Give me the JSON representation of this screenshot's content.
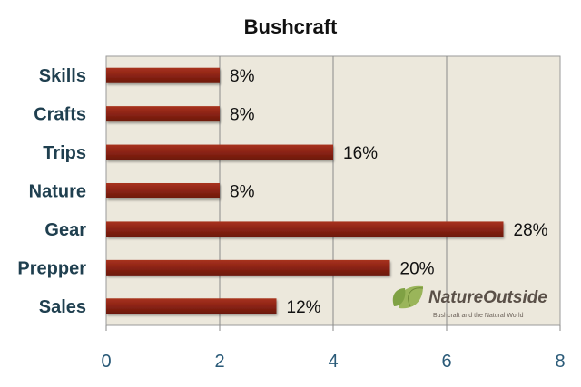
{
  "chart_data": {
    "type": "bar",
    "orientation": "horizontal",
    "title": "Bushcraft",
    "categories": [
      "Skills",
      "Crafts",
      "Trips",
      "Nature",
      "Gear",
      "Prepper",
      "Sales"
    ],
    "values": [
      2,
      2,
      4,
      2,
      7,
      5,
      3
    ],
    "data_labels": [
      "8%",
      "8%",
      "16%",
      "8%",
      "28%",
      "20%",
      "12%"
    ],
    "xlim": [
      0,
      8
    ],
    "xticks": [
      "0",
      "2",
      "4",
      "6",
      "8"
    ],
    "xlabel": "",
    "ylabel": "",
    "grid": "vertical",
    "legend": "none",
    "colors": {
      "bar": "#8b2314",
      "plot_background": "#ece8dc",
      "gridline": "#8a8a8a",
      "category_text": "#1f3f4f",
      "tick_text": "#2a5a78"
    }
  },
  "watermark": {
    "brand": "NatureOutside",
    "tagline": "Bushcraft and the Natural World",
    "icon": "leaf-icon"
  }
}
